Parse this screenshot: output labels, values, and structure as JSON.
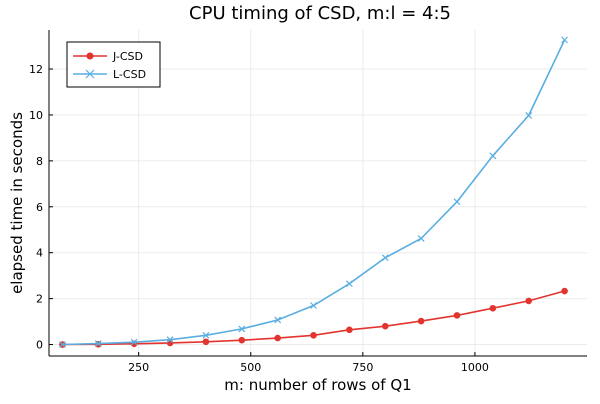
{
  "chart_data": {
    "type": "line",
    "title": "CPU timing of CSD, m:l = 4:5",
    "xlabel": "m: number of rows of Q1",
    "ylabel": "elapsed time in seconds",
    "xlim": [
      50,
      1250
    ],
    "ylim": [
      -0.5,
      13.7
    ],
    "xticks": [
      250,
      500,
      750,
      1000
    ],
    "yticks": [
      0,
      2,
      4,
      6,
      8,
      10,
      12
    ],
    "grid": true,
    "legend_position": "top-left",
    "x": [
      80,
      160,
      240,
      320,
      400,
      480,
      560,
      640,
      720,
      800,
      880,
      960,
      1040,
      1120,
      1200
    ],
    "series": [
      {
        "name": "J-CSD",
        "color": "#e3342f",
        "marker": "circle",
        "values": [
          0.0,
          0.01,
          0.03,
          0.07,
          0.12,
          0.19,
          0.28,
          0.4,
          0.64,
          0.8,
          1.02,
          1.27,
          1.58,
          1.9,
          2.33
        ]
      },
      {
        "name": "L-CSD",
        "color": "#5aaee0",
        "marker": "x",
        "values": [
          0.0,
          0.04,
          0.1,
          0.21,
          0.4,
          0.68,
          1.07,
          1.7,
          2.65,
          3.78,
          4.62,
          6.22,
          8.22,
          9.98,
          13.27
        ]
      }
    ]
  }
}
